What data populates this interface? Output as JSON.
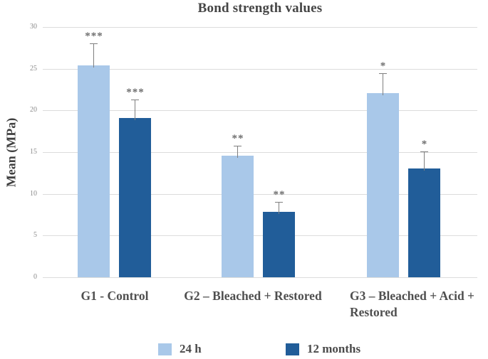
{
  "chart_data": {
    "type": "bar",
    "title": "Bond strength values",
    "ylabel": "Mean (MPa)",
    "xlabel": "",
    "ylim": [
      0,
      30
    ],
    "yticks": [
      0,
      5,
      10,
      15,
      20,
      25,
      30
    ],
    "grid": "horizontal",
    "legend_position": "bottom",
    "categories": [
      "G1 - Control",
      "G2 – Bleached + Restored",
      "G3 – Bleached + Acid + Restored"
    ],
    "series": [
      {
        "name": "24 h",
        "color": "#A9C8E9",
        "values": [
          25.4,
          14.6,
          22.1
        ],
        "upper_error_tops": [
          28.0,
          15.8,
          24.5
        ],
        "significance": [
          "***",
          "**",
          "*"
        ]
      },
      {
        "name": "12 months",
        "color": "#215D99",
        "values": [
          19.1,
          7.8,
          13.0
        ],
        "upper_error_tops": [
          21.3,
          9.0,
          15.1
        ],
        "significance": [
          "***",
          "**",
          "*"
        ]
      }
    ],
    "colors": {
      "grid": "#DCDCDC",
      "error_bar": "#7F7F7F",
      "stars": "#6E6E6E",
      "title_text": "#454545",
      "axis_text": "#4F4F4F",
      "tick_text": "#8A8A8A"
    }
  }
}
